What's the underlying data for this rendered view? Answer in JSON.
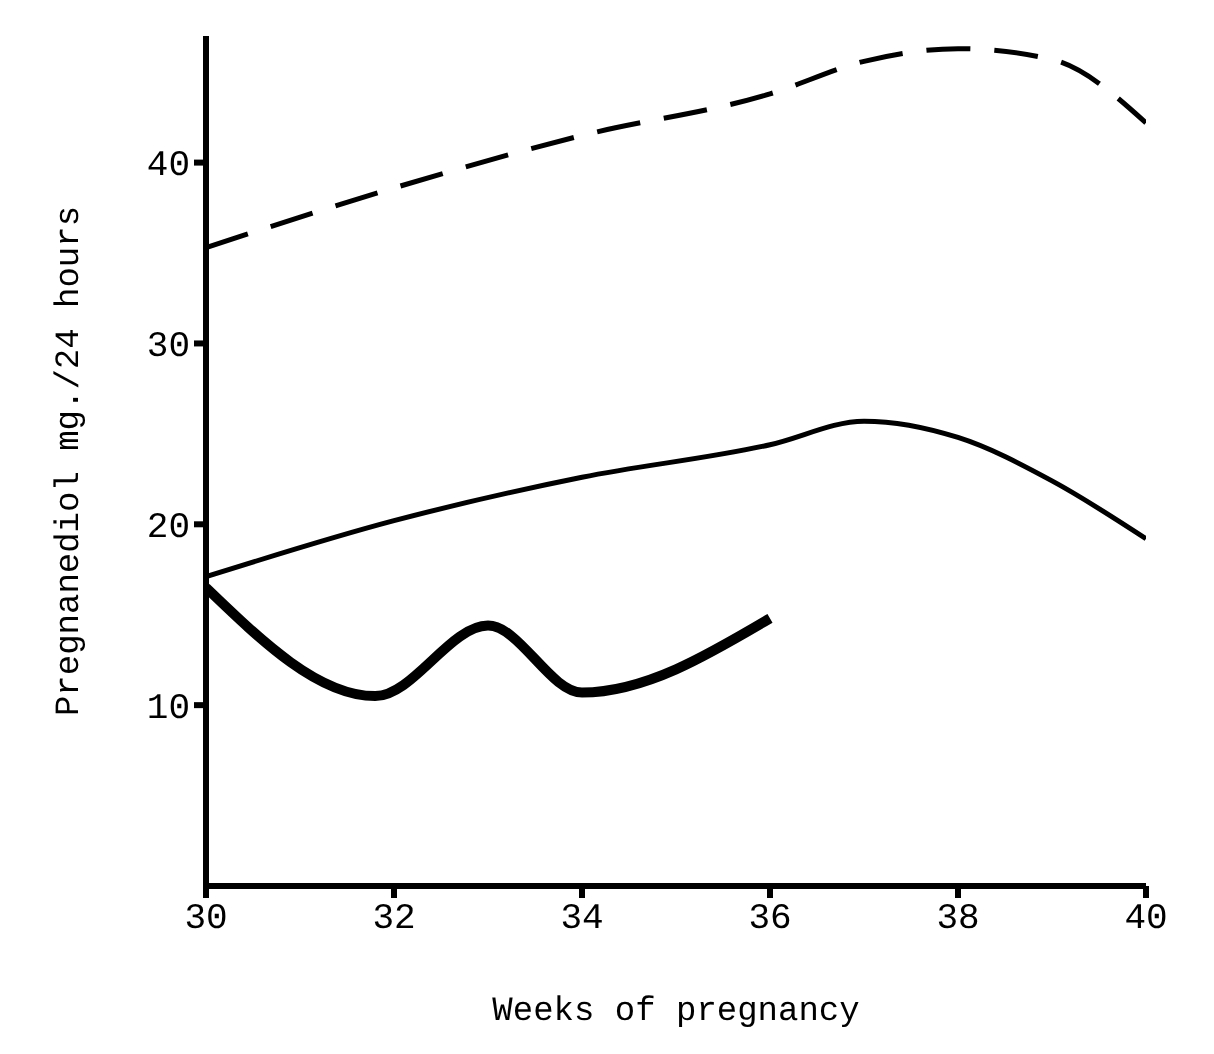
{
  "chart_data": {
    "type": "line",
    "xlabel": "Weeks of pregnancy",
    "ylabel": "Pregnanediol mg./24 hours",
    "xlim": [
      30,
      40
    ],
    "xticks": [
      30,
      32,
      34,
      36,
      38,
      40
    ],
    "ylim": [
      0,
      47
    ],
    "yticks": [
      10,
      20,
      30,
      40
    ],
    "grid": false,
    "legend": false,
    "marker": "none",
    "series": [
      {
        "color": "#000000",
        "line_style": "dashed",
        "x": [
          30,
          32,
          34,
          36,
          37,
          38,
          39,
          40
        ],
        "values": [
          35.3,
          38.6,
          41.5,
          43.8,
          45.6,
          46.3,
          45.7,
          42.2
        ]
      },
      {
        "color": "#000000",
        "line_style": "solid",
        "x": [
          30,
          32,
          34,
          36,
          37,
          38,
          39,
          40
        ],
        "values": [
          17.1,
          20.2,
          22.6,
          24.4,
          25.7,
          24.8,
          22.4,
          19.2
        ]
      },
      {
        "color": "#000000",
        "line_style": "solid",
        "x": [
          30,
          31.8,
          33,
          34,
          36
        ],
        "values": [
          16.5,
          10.5,
          14.4,
          10.7,
          14.8
        ]
      }
    ]
  }
}
